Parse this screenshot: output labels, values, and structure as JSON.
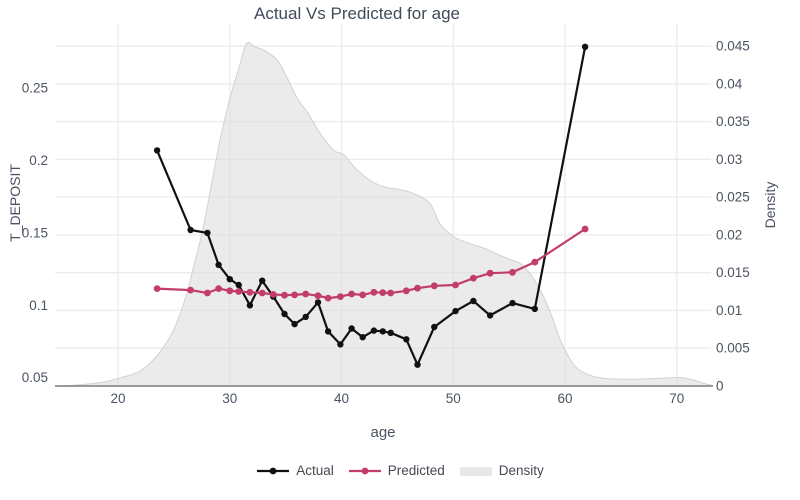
{
  "title": "Actual Vs Predicted for age",
  "colors": {
    "actual": "#111111",
    "predicted": "#c33d69",
    "density_fill": "#e7e7e7",
    "density_edge": "#d3d3d3",
    "grid": "#ebebeb",
    "axis_line": "#7d7d7d",
    "title_text": "#404b5a",
    "tick_text": "#4a5361"
  },
  "legend": {
    "items": [
      "Actual",
      "Predicted",
      "Density"
    ]
  },
  "chart_data": {
    "type": "line",
    "title": "Actual Vs Predicted for age",
    "xlabel": "age",
    "ylabel_left": "T_DEPOSIT",
    "ylabel_right": "Density",
    "grid": true,
    "legend_position": "bottom-center",
    "x_ticks": [
      20,
      30,
      40,
      50,
      60,
      70
    ],
    "y_left_ticks": [
      0.05,
      0.1,
      0.15,
      0.2,
      0.25
    ],
    "y_right_ticks": [
      0,
      0.005,
      0.01,
      0.015,
      0.02,
      0.025,
      0.03,
      0.035,
      0.04,
      0.045
    ],
    "xlim": [
      14.4,
      73.1
    ],
    "ylim_left": [
      0.0443,
      0.29
    ],
    "ylim_right": [
      0,
      0.0471
    ],
    "series": [
      {
        "name": "Actual",
        "axis": "left",
        "type": "line+markers",
        "color": "#111111",
        "x": [
          23.5,
          26.5,
          28,
          29,
          30,
          30.8,
          31.8,
          32.9,
          33.9,
          34.9,
          35.8,
          36.8,
          37.9,
          38.8,
          39.9,
          40.9,
          41.9,
          42.9,
          43.7,
          44.4,
          45.8,
          46.8,
          48.3,
          50.2,
          51.8,
          53.3,
          55.3,
          57.3,
          61.8
        ],
        "y": [
          0.207,
          0.152,
          0.15,
          0.128,
          0.118,
          0.114,
          0.1,
          0.117,
          0.106,
          0.094,
          0.087,
          0.092,
          0.102,
          0.082,
          0.073,
          0.084,
          0.078,
          0.0825,
          0.082,
          0.081,
          0.0765,
          0.059,
          0.085,
          0.096,
          0.103,
          0.093,
          0.1015,
          0.0975,
          0.2785
        ]
      },
      {
        "name": "Predicted",
        "axis": "left",
        "type": "line+markers",
        "color": "#c33d69",
        "x": [
          23.5,
          26.5,
          28,
          29,
          30,
          30.8,
          31.8,
          32.9,
          33.9,
          34.9,
          35.8,
          36.8,
          37.9,
          38.8,
          39.9,
          40.9,
          41.9,
          42.9,
          43.7,
          44.4,
          45.8,
          46.8,
          48.3,
          50.2,
          51.8,
          53.3,
          55.3,
          57.3,
          61.8
        ],
        "y": [
          0.1115,
          0.1105,
          0.1085,
          0.1115,
          0.11,
          0.1095,
          0.109,
          0.1085,
          0.1075,
          0.107,
          0.1072,
          0.1078,
          0.1066,
          0.105,
          0.106,
          0.1078,
          0.1072,
          0.109,
          0.1088,
          0.1085,
          0.11,
          0.1118,
          0.1135,
          0.114,
          0.1187,
          0.1222,
          0.1228,
          0.1298,
          0.1527
        ]
      },
      {
        "name": "Density",
        "axis": "right",
        "type": "area",
        "color": "#e7e7e7",
        "x": [
          14.4,
          16,
          17.5,
          19,
          20,
          21,
          22,
          23,
          24,
          25,
          26,
          26.8,
          27.6,
          28.4,
          29.2,
          30,
          30.8,
          31.5,
          32.2,
          33,
          34.2,
          35,
          36,
          37,
          38.1,
          39.3,
          40.2,
          41.4,
          42.8,
          44,
          45.2,
          46.4,
          47.9,
          48.8,
          50,
          51,
          52,
          53,
          54,
          55,
          56,
          56.8,
          57.6,
          58.4,
          59,
          59.6,
          60.2,
          60.8,
          61.5,
          62.5,
          63.5,
          65,
          66.5,
          68,
          69.5,
          70.5,
          71.5,
          72.3,
          73.1
        ],
        "y": [
          0,
          0.0001,
          0.0003,
          0.0006,
          0.001,
          0.0014,
          0.002,
          0.0032,
          0.005,
          0.0075,
          0.0115,
          0.016,
          0.0208,
          0.027,
          0.033,
          0.038,
          0.042,
          0.0453,
          0.0449,
          0.0445,
          0.0432,
          0.0412,
          0.0382,
          0.0361,
          0.0334,
          0.0312,
          0.0306,
          0.0286,
          0.027,
          0.0263,
          0.026,
          0.0255,
          0.0242,
          0.0215,
          0.0198,
          0.0191,
          0.0186,
          0.0181,
          0.0174,
          0.0168,
          0.0162,
          0.015,
          0.0132,
          0.0108,
          0.0085,
          0.006,
          0.0042,
          0.0028,
          0.0019,
          0.0013,
          0.001,
          0.0009,
          0.0009,
          0.001,
          0.0011,
          0.0011,
          0.0008,
          0.0004,
          0.0001
        ]
      }
    ]
  }
}
